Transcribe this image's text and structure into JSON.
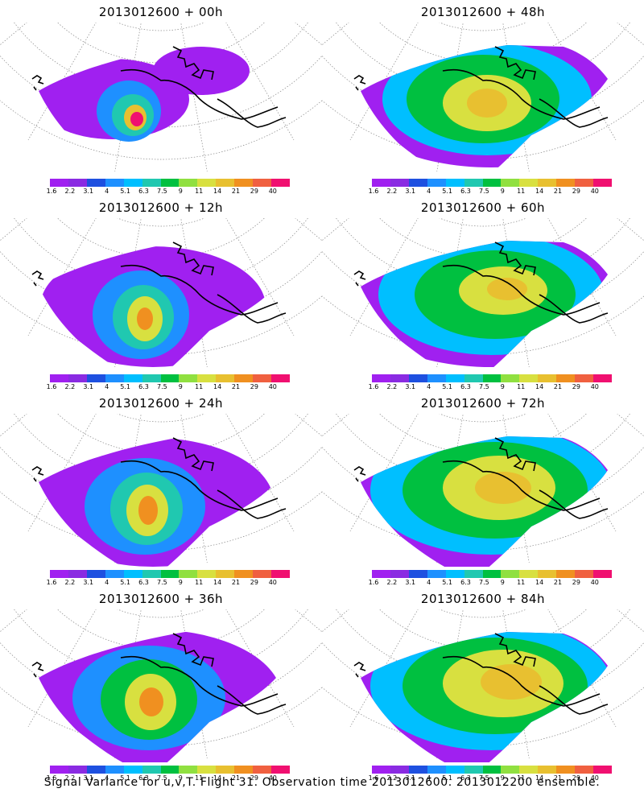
{
  "panels": [
    {
      "title": "2013012600 + 00h",
      "stage": 0
    },
    {
      "title": "2013012600 + 48h",
      "stage": 4
    },
    {
      "title": "2013012600 + 12h",
      "stage": 1
    },
    {
      "title": "2013012600 + 60h",
      "stage": 5
    },
    {
      "title": "2013012600 + 24h",
      "stage": 2
    },
    {
      "title": "2013012600 + 72h",
      "stage": 6
    },
    {
      "title": "2013012600 + 36h",
      "stage": 3
    },
    {
      "title": "2013012600 + 84h",
      "stage": 7
    }
  ],
  "colorbar": {
    "labels": [
      "1.6",
      "2.2",
      "3.1",
      "4",
      "5.1",
      "6.3",
      "7.5",
      "9",
      "11",
      "14",
      "21",
      "29",
      "40"
    ],
    "colors": [
      "#a020f0",
      "#8a2be2",
      "#1e50e0",
      "#1e90ff",
      "#00bfff",
      "#20c8b0",
      "#00c040",
      "#90e040",
      "#d8e040",
      "#e8c030",
      "#f09020",
      "#f06040",
      "#f01070"
    ]
  },
  "caption": "Signal Variance for u,v,T. Flight 31. Observation time 2013012600. 2013012200 ensemble."
}
